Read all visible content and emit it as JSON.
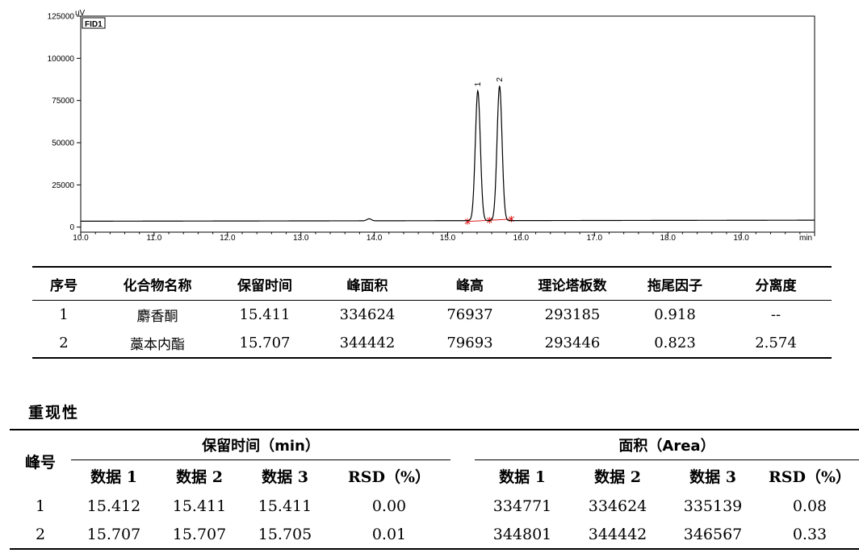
{
  "chromatogram": {
    "y_unit": "uV",
    "label": "FID1",
    "x_unit": "min",
    "y_ticks": [
      "125000",
      "100000",
      "75000",
      "50000",
      "25000",
      "0"
    ],
    "x_ticks": [
      "10.0",
      "11.0",
      "12.0",
      "13.0",
      "14.0",
      "15.0",
      "16.0",
      "17.0",
      "18.0",
      "19.0"
    ],
    "peak_labels": [
      "1",
      "2"
    ]
  },
  "chart_data": {
    "type": "line",
    "xlim": [
      10.0,
      20.0
    ],
    "ylim": [
      -3000,
      125000
    ],
    "baseline": 3500,
    "peaks": [
      {
        "label": "1",
        "rt": 15.411,
        "height": 76937
      },
      {
        "label": "2",
        "rt": 15.707,
        "height": 79693
      }
    ],
    "minor_peaks": [
      {
        "rt": 13.93,
        "height": 1200
      }
    ],
    "line_color": "#000000",
    "baseline_marker_color": "#e0201f"
  },
  "table1": {
    "headers": [
      "序号",
      "化合物名称",
      "保留时间",
      "峰面积",
      "峰高",
      "理论塔板数",
      "拖尾因子",
      "分离度"
    ],
    "rows": [
      [
        "1",
        "麝香酮",
        "15.411",
        "334624",
        "76937",
        "293185",
        "0.918",
        "--"
      ],
      [
        "2",
        "藁本内酯",
        "15.707",
        "344442",
        "79693",
        "293446",
        "0.823",
        "2.574"
      ]
    ]
  },
  "section_title": "重现性",
  "table2": {
    "peak_header": "峰号",
    "group1": "保留时间（min）",
    "group2": "面积（Area）",
    "sub_headers": [
      "数据 1",
      "数据 2",
      "数据 3",
      "RSD（%）",
      "数据 1",
      "数据 2",
      "数据 3",
      "RSD（%）"
    ],
    "rows": [
      [
        "1",
        "15.412",
        "15.411",
        "15.411",
        "0.00",
        "334771",
        "334624",
        "335139",
        "0.08"
      ],
      [
        "2",
        "15.707",
        "15.707",
        "15.705",
        "0.01",
        "344801",
        "344442",
        "346567",
        "0.33"
      ]
    ]
  }
}
